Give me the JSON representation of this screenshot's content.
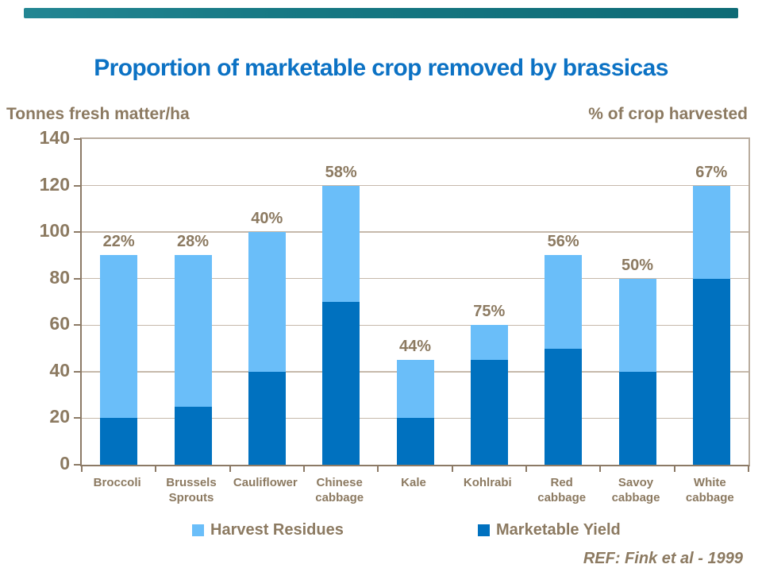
{
  "title": "Proportion of marketable crop removed by brassicas",
  "reference": "REF: Fink et al - 1999",
  "colors": {
    "accent_bar": "#177984",
    "title": "#0C72C4",
    "text_brown": "#8C7A61",
    "gridline": "#C6B9AB",
    "plot_border": "#B9AC9E",
    "axis": "#8C7A66",
    "harvest_residues": "#6ABEF9",
    "marketable_yield": "#0071BF"
  },
  "legend": {
    "items": [
      {
        "label": "Harvest Residues",
        "swatch": "harvest_residues"
      },
      {
        "label": "Marketable Yield",
        "swatch": "marketable_yield"
      }
    ]
  },
  "chart_data": {
    "type": "bar",
    "stacked": true,
    "title": "Proportion of marketable crop removed by brassicas",
    "ylabel_left": "Tonnes fresh matter/ha",
    "ylabel_right": "% of crop harvested",
    "categories": [
      "Broccoli",
      "Brussels Sprouts",
      "Cauliflower",
      "Chinese cabbage",
      "Kale",
      "Kohlrabi",
      "Red cabbage",
      "Savoy cabbage",
      "White cabbage"
    ],
    "series": [
      {
        "name": "Marketable Yield",
        "color": "marketable_yield",
        "values": [
          20,
          25,
          40,
          70,
          20,
          45,
          50,
          40,
          80
        ]
      },
      {
        "name": "Harvest Residues",
        "color": "harvest_residues",
        "values": [
          70,
          65,
          60,
          50,
          25,
          15,
          40,
          40,
          40
        ]
      }
    ],
    "totals": [
      90,
      90,
      100,
      120,
      45,
      60,
      90,
      80,
      120
    ],
    "bar_labels": [
      "22%",
      "28%",
      "40%",
      "58%",
      "44%",
      "75%",
      "56%",
      "50%",
      "67%"
    ],
    "ylim": [
      0,
      140
    ],
    "yticks": [
      0,
      20,
      40,
      60,
      80,
      100,
      120,
      140
    ],
    "grid": true,
    "legend_position": "bottom"
  }
}
